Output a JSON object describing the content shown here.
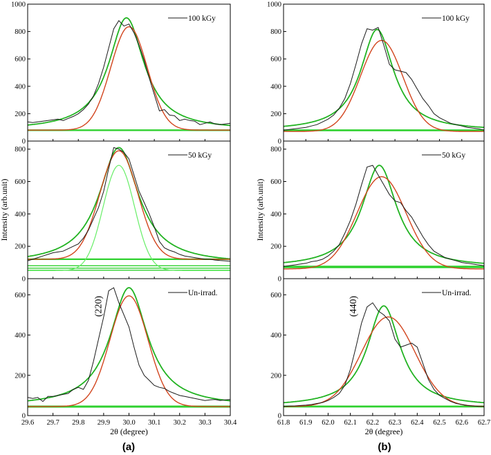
{
  "chart_data": {
    "type": "line",
    "colors": {
      "experimental": "#1a1a1a",
      "fit_gaussian": "#d2451e",
      "fit_lorentzian": "#22b322",
      "component": "#66ee66",
      "baseline": "#2fd12f"
    },
    "columns": [
      {
        "label": "(a)",
        "xlabel": "2θ (degree)",
        "ylabel": "Intensity (arb.unit)",
        "xlim": [
          29.6,
          30.4
        ],
        "xticks": [
          "29.6",
          "29.7",
          "29.8",
          "29.9",
          "30.0",
          "30.1",
          "30.2",
          "30.3",
          "30.4"
        ],
        "peak_label": "(220)",
        "panels": [
          {
            "legend": "100 kGy",
            "ylim": [
              0,
              1000
            ],
            "yticks": [
              "0",
              "200",
              "400",
              "600",
              "800",
              "1000"
            ],
            "experimental": {
              "x": [
                29.6,
                29.62,
                29.64,
                29.66,
                29.68,
                29.7,
                29.72,
                29.74,
                29.76,
                29.78,
                29.8,
                29.82,
                29.84,
                29.86,
                29.88,
                29.9,
                29.92,
                29.94,
                29.96,
                29.98,
                30.0,
                30.02,
                30.04,
                30.06,
                30.08,
                30.1,
                30.12,
                30.14,
                30.16,
                30.18,
                30.2,
                30.22,
                30.24,
                30.26,
                30.28,
                30.3,
                30.32,
                30.34,
                30.36,
                30.38,
                30.4
              ],
              "y": [
                140,
                135,
                140,
                145,
                150,
                155,
                160,
                150,
                165,
                180,
                200,
                230,
                270,
                330,
                420,
                540,
                680,
                820,
                880,
                840,
                855,
                790,
                700,
                590,
                460,
                340,
                220,
                230,
                190,
                185,
                150,
                160,
                150,
                145,
                120,
                130,
                140,
                125,
                120,
                125,
                130
              ]
            },
            "fit_gaussian": {
              "center": 30.0,
              "amplitude": 755,
              "sigma": 0.072,
              "baseline": 80
            },
            "fit_lorentzian": {
              "center": 29.99,
              "amplitude": 820,
              "gamma": 0.085,
              "baseline": 80
            },
            "baselines": [
              80,
              77
            ]
          },
          {
            "legend": "50 kGy",
            "ylim": [
              0,
              850
            ],
            "yticks": [
              "0",
              "200",
              "400",
              "600",
              "800"
            ],
            "experimental": {
              "x": [
                29.6,
                29.62,
                29.64,
                29.66,
                29.68,
                29.7,
                29.72,
                29.74,
                29.76,
                29.78,
                29.8,
                29.82,
                29.84,
                29.86,
                29.88,
                29.9,
                29.92,
                29.94,
                29.96,
                29.98,
                30.0,
                30.02,
                30.04,
                30.06,
                30.08,
                30.1,
                30.12,
                30.14,
                30.16,
                30.18,
                30.2,
                30.22,
                30.24,
                30.26,
                30.28,
                30.3,
                30.32,
                30.34,
                30.36,
                30.38,
                30.4
              ],
              "y": [
                110,
                120,
                130,
                140,
                150,
                160,
                165,
                170,
                185,
                200,
                215,
                250,
                300,
                370,
                440,
                540,
                680,
                810,
                800,
                780,
                740,
                640,
                540,
                470,
                400,
                320,
                230,
                190,
                175,
                165,
                150,
                140,
                135,
                130,
                125,
                120,
                120,
                115,
                112,
                110,
                108
              ]
            },
            "fit_gaussian": {
              "center": 29.96,
              "amplitude": 670,
              "sigma": 0.075,
              "baseline": 120
            },
            "fit_lorentzian": {
              "center": 29.96,
              "amplitude": 720,
              "gamma": 0.095,
              "baseline": 90
            },
            "component": {
              "center": 29.96,
              "amplitude": 650,
              "sigma": 0.062,
              "baseline": 50
            },
            "baselines": [
              120,
              80,
              65,
              52
            ]
          },
          {
            "legend": "Un-irrad.",
            "ylim": [
              0,
              680
            ],
            "yticks": [
              "0",
              "200",
              "400",
              "600"
            ],
            "experimental": {
              "x": [
                29.6,
                29.62,
                29.64,
                29.66,
                29.68,
                29.7,
                29.72,
                29.74,
                29.76,
                29.78,
                29.8,
                29.82,
                29.84,
                29.86,
                29.88,
                29.9,
                29.92,
                29.94,
                29.96,
                29.98,
                30.0,
                30.02,
                30.04,
                30.06,
                30.08,
                30.1,
                30.12,
                30.14,
                30.16,
                30.18,
                30.2,
                30.22,
                30.24,
                30.26,
                30.28,
                30.3,
                30.32,
                30.34,
                30.36,
                30.38,
                30.4
              ],
              "y": [
                90,
                85,
                90,
                70,
                95,
                95,
                100,
                105,
                110,
                130,
                140,
                130,
                175,
                270,
                380,
                490,
                620,
                635,
                560,
                500,
                440,
                340,
                250,
                200,
                175,
                150,
                140,
                135,
                120,
                110,
                100,
                95,
                90,
                85,
                80,
                75,
                78,
                80,
                75,
                78,
                80
              ]
            },
            "fit_gaussian": {
              "center": 30.0,
              "amplitude": 550,
              "sigma": 0.075,
              "baseline": 45
            },
            "fit_lorentzian": {
              "center": 30.0,
              "amplitude": 590,
              "gamma": 0.09,
              "baseline": 45
            },
            "baselines": [
              46,
              42
            ]
          }
        ]
      },
      {
        "label": "(b)",
        "xlabel": "2θ (degree)",
        "ylabel": "Intensity (arb.unit)",
        "xlim": [
          61.8,
          62.7
        ],
        "xticks": [
          "61.8",
          "61.9",
          "62.0",
          "62.1",
          "62.2",
          "62.3",
          "62.4",
          "62.5",
          "62.6",
          "62.7"
        ],
        "peak_label": "(440)",
        "panels": [
          {
            "legend": "100 kGy",
            "ylim": [
              0,
              1000
            ],
            "yticks": [
              "0",
              "200",
              "400",
              "600",
              "800",
              "1000"
            ],
            "experimental": {
              "x": [
                61.8,
                61.825,
                61.85,
                61.875,
                61.9,
                61.925,
                61.95,
                61.975,
                62.0,
                62.025,
                62.05,
                62.075,
                62.1,
                62.125,
                62.15,
                62.175,
                62.2,
                62.225,
                62.25,
                62.275,
                62.3,
                62.325,
                62.35,
                62.375,
                62.4,
                62.425,
                62.45,
                62.475,
                62.5,
                62.525,
                62.55,
                62.575,
                62.6,
                62.625,
                62.65,
                62.675,
                62.7
              ],
              "y": [
                80,
                85,
                90,
                95,
                100,
                110,
                120,
                140,
                160,
                190,
                240,
                310,
                420,
                560,
                710,
                820,
                810,
                830,
                700,
                560,
                520,
                510,
                500,
                450,
                380,
                310,
                260,
                200,
                170,
                150,
                130,
                120,
                110,
                100,
                95,
                90,
                80
              ]
            },
            "fit_gaussian": {
              "center": 62.24,
              "amplitude": 665,
              "sigma": 0.095,
              "baseline": 70
            },
            "fit_lorentzian": {
              "center": 62.22,
              "amplitude": 740,
              "gamma": 0.09,
              "baseline": 75
            },
            "baselines": [
              80,
              76
            ]
          },
          {
            "legend": "50 kGy",
            "ylim": [
              0,
              850
            ],
            "yticks": [
              "0",
              "200",
              "400",
              "600",
              "800"
            ],
            "experimental": {
              "x": [
                61.8,
                61.825,
                61.85,
                61.875,
                61.9,
                61.925,
                61.95,
                61.975,
                62.0,
                62.025,
                62.05,
                62.075,
                62.1,
                62.125,
                62.15,
                62.175,
                62.2,
                62.225,
                62.25,
                62.275,
                62.3,
                62.325,
                62.35,
                62.375,
                62.4,
                62.425,
                62.45,
                62.475,
                62.5,
                62.525,
                62.55,
                62.575,
                62.6,
                62.625,
                62.65,
                62.675,
                62.7
              ],
              "y": [
                75,
                80,
                85,
                90,
                95,
                105,
                110,
                120,
                140,
                170,
                210,
                280,
                360,
                460,
                580,
                690,
                700,
                640,
                580,
                520,
                480,
                470,
                420,
                380,
                320,
                260,
                210,
                170,
                150,
                130,
                120,
                110,
                100,
                95,
                90,
                85,
                80
              ]
            },
            "fit_gaussian": {
              "center": 62.24,
              "amplitude": 570,
              "sigma": 0.11,
              "baseline": 60
            },
            "fit_lorentzian": {
              "center": 62.23,
              "amplitude": 630,
              "gamma": 0.095,
              "baseline": 70
            },
            "baselines": [
              75,
              68
            ]
          },
          {
            "legend": "Un-irrad.",
            "ylim": [
              0,
              680
            ],
            "yticks": [
              "0",
              "200",
              "400",
              "600"
            ],
            "experimental": {
              "x": [
                61.8,
                61.825,
                61.85,
                61.875,
                61.9,
                61.925,
                61.95,
                61.975,
                62.0,
                62.025,
                62.05,
                62.075,
                62.1,
                62.125,
                62.15,
                62.175,
                62.2,
                62.225,
                62.25,
                62.275,
                62.3,
                62.325,
                62.35,
                62.375,
                62.4,
                62.425,
                62.45,
                62.475,
                62.5,
                62.525,
                62.55,
                62.575,
                62.6,
                62.625,
                62.65,
                62.675,
                62.7
              ],
              "y": [
                45,
                47,
                48,
                50,
                52,
                55,
                60,
                65,
                75,
                90,
                110,
                150,
                230,
                340,
                460,
                540,
                560,
                520,
                500,
                470,
                380,
                340,
                350,
                360,
                340,
                260,
                180,
                130,
                100,
                85,
                70,
                60,
                55,
                50,
                48,
                46,
                45
              ]
            },
            "fit_gaussian": {
              "center": 62.27,
              "amplitude": 445,
              "sigma": 0.12,
              "baseline": 45
            },
            "fit_lorentzian": {
              "center": 62.25,
              "amplitude": 500,
              "gamma": 0.09,
              "baseline": 45
            },
            "baselines": [
              46,
              43
            ]
          }
        ]
      }
    ]
  }
}
